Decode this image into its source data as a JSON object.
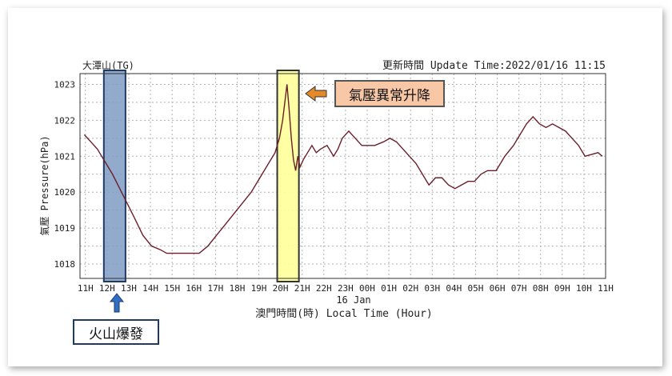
{
  "header": {
    "station": "大潭山(TG)",
    "update_time": "更新時間 Update Time:2022/01/16 11:15"
  },
  "annotations": {
    "anomaly_label": "氣壓異常升降",
    "eruption_label": "火山爆發"
  },
  "colors": {
    "line": "#6b1f2a",
    "grid": "#b0b0b0",
    "eruption_band": "#7f9cc4",
    "anomaly_band": "#ffff99",
    "arrow_orange": "#e58a2a",
    "arrow_blue": "#2f6fc6"
  },
  "chart_data": {
    "type": "line",
    "ylabel": "氣壓 Pressure(hPa)",
    "xlabel": "澳門時間(時) Local Time (Hour)",
    "date_label": "16 Jan",
    "x_ticks": [
      "11H",
      "12H",
      "13H",
      "14H",
      "15H",
      "16H",
      "17H",
      "18H",
      "19H",
      "20H",
      "21H",
      "22H",
      "23H",
      "00H",
      "01H",
      "02H",
      "03H",
      "04H",
      "05H",
      "06H",
      "07H",
      "08H",
      "09H",
      "10H",
      "11H"
    ],
    "y_ticks": [
      1018,
      1019,
      1020,
      1021,
      1022,
      1023
    ],
    "ylim": [
      1017.6,
      1023.3
    ],
    "xlim": [
      0,
      24.25
    ],
    "grid": true,
    "highlight_eruption": [
      1.1,
      2.1
    ],
    "highlight_anomaly": [
      9.1,
      10.1
    ],
    "series": [
      {
        "x": [
          0.2,
          0.5,
          0.8,
          1.1,
          1.5,
          2.0,
          2.5,
          2.9,
          3.3,
          3.7,
          4.0,
          4.5,
          5.0,
          5.5,
          5.9,
          6.3,
          6.7,
          7.1,
          7.5,
          7.9,
          8.3,
          8.7,
          9.0,
          9.2,
          9.35,
          9.45,
          9.55,
          9.65,
          9.75,
          9.85,
          9.95,
          10.05,
          10.15,
          10.3,
          10.5,
          10.7,
          10.9,
          11.1,
          11.4,
          11.7,
          11.9,
          12.1,
          12.4,
          12.7,
          13.0,
          13.3,
          13.6,
          14.0,
          14.3,
          14.6,
          14.9,
          15.2,
          15.5,
          15.8,
          16.1,
          16.4,
          16.7,
          17.0,
          17.3,
          17.6,
          17.9,
          18.2,
          18.5,
          18.8,
          19.2,
          19.6,
          20.0,
          20.3,
          20.6,
          20.9,
          21.2,
          21.5,
          21.8,
          22.1,
          22.4,
          22.7,
          23.0,
          23.3,
          23.6,
          23.9,
          24.1
        ],
        "y": [
          1021.6,
          1021.4,
          1021.2,
          1020.9,
          1020.5,
          1019.9,
          1019.3,
          1018.8,
          1018.5,
          1018.4,
          1018.3,
          1018.3,
          1018.3,
          1018.3,
          1018.5,
          1018.8,
          1019.1,
          1019.4,
          1019.7,
          1020.0,
          1020.4,
          1020.8,
          1021.1,
          1021.5,
          1022.0,
          1022.5,
          1023.0,
          1022.3,
          1021.5,
          1020.9,
          1020.6,
          1021.0,
          1020.7,
          1020.9,
          1021.1,
          1021.3,
          1021.1,
          1021.2,
          1021.3,
          1021.0,
          1021.2,
          1021.5,
          1021.7,
          1021.5,
          1021.3,
          1021.3,
          1021.3,
          1021.4,
          1021.5,
          1021.4,
          1021.2,
          1021.0,
          1020.8,
          1020.5,
          1020.2,
          1020.4,
          1020.4,
          1020.2,
          1020.1,
          1020.2,
          1020.3,
          1020.3,
          1020.5,
          1020.6,
          1020.6,
          1021.0,
          1021.3,
          1021.6,
          1021.9,
          1022.1,
          1021.9,
          1021.8,
          1021.9,
          1021.8,
          1021.7,
          1021.5,
          1021.3,
          1021.0,
          1021.05,
          1021.1,
          1021.0
        ]
      }
    ]
  }
}
